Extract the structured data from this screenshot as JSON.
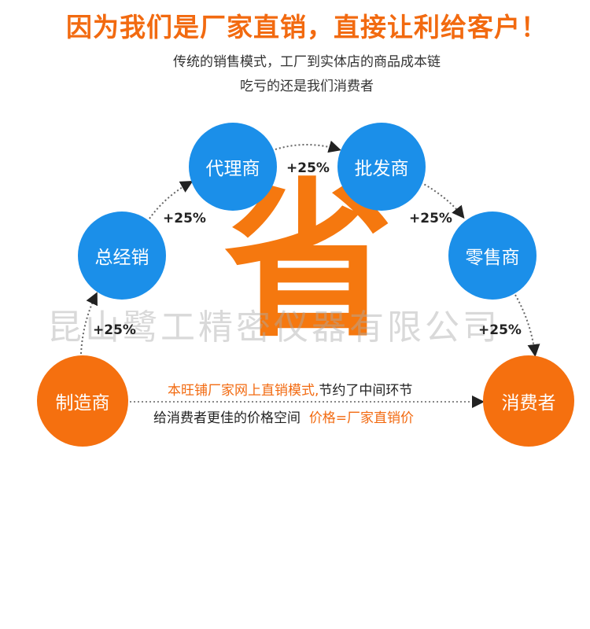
{
  "header": {
    "title": "因为我们是厂家直销，直接让利给客户！",
    "subtitle_line1": "传统的销售模式，工厂到实体店的商品成本链",
    "subtitle_line2": "吃亏的还是我们消费者"
  },
  "nodes": {
    "manufacturer": "制造商",
    "distributor": "总经销",
    "agent": "代理商",
    "wholesaler": "批发商",
    "retailer": "零售商",
    "consumer": "消费者"
  },
  "markups": [
    "+25%",
    "+25%",
    "+25%",
    "+25%",
    "+25%"
  ],
  "center_char": "省",
  "watermark": "昆山鹭工精密仪器有限公司",
  "direct": {
    "line1_orange": "本旺铺厂家网上直销模式,",
    "line1_dark": "节约了中间环节",
    "line2_dark": "给消费者更佳的价格空间",
    "line2_orange": "价格=厂家直销价"
  },
  "colors": {
    "blue": "#1b8fe9",
    "orange": "#f5700f",
    "title": "#f26a10"
  }
}
